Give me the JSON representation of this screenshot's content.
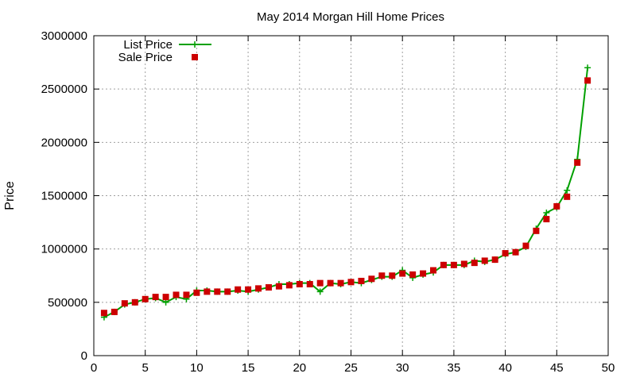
{
  "chart_data": {
    "type": "line",
    "title": "May 2014 Morgan Hill Home Prices",
    "xlabel": "",
    "ylabel": "Price",
    "xlim": [
      0,
      50
    ],
    "ylim": [
      0,
      3000000
    ],
    "x_ticks": [
      0,
      5,
      10,
      15,
      20,
      25,
      30,
      35,
      40,
      45,
      50
    ],
    "y_ticks": [
      0,
      500000,
      1000000,
      1500000,
      2000000,
      2500000,
      3000000
    ],
    "grid": true,
    "legend_position": "top-left",
    "series": [
      {
        "name": "List Price",
        "style": "line-with-plus-markers",
        "color": "#00a000",
        "x": [
          1,
          2,
          3,
          4,
          5,
          6,
          7,
          8,
          9,
          10,
          11,
          12,
          13,
          14,
          15,
          16,
          17,
          18,
          19,
          20,
          21,
          22,
          23,
          24,
          25,
          26,
          27,
          28,
          29,
          30,
          31,
          32,
          33,
          34,
          35,
          36,
          37,
          38,
          39,
          40,
          41,
          42,
          43,
          44,
          45,
          46,
          47,
          48
        ],
        "values": [
          360000,
          410000,
          480000,
          500000,
          530000,
          540000,
          500000,
          550000,
          530000,
          610000,
          610000,
          600000,
          600000,
          610000,
          600000,
          620000,
          640000,
          670000,
          670000,
          680000,
          680000,
          600000,
          680000,
          670000,
          690000,
          680000,
          710000,
          740000,
          740000,
          800000,
          730000,
          760000,
          780000,
          850000,
          850000,
          850000,
          890000,
          880000,
          900000,
          950000,
          970000,
          1020000,
          1190000,
          1340000,
          1390000,
          1550000,
          1840000,
          2700000
        ]
      },
      {
        "name": "Sale Price",
        "style": "square-markers",
        "color": "#cc0000",
        "x": [
          1,
          2,
          3,
          4,
          5,
          6,
          7,
          8,
          9,
          10,
          11,
          12,
          13,
          14,
          15,
          16,
          17,
          18,
          19,
          20,
          21,
          22,
          23,
          24,
          25,
          26,
          27,
          28,
          29,
          30,
          31,
          32,
          33,
          34,
          35,
          36,
          37,
          38,
          39,
          40,
          41,
          42,
          43,
          44,
          45,
          46,
          47,
          48
        ],
        "values": [
          400000,
          410000,
          490000,
          500000,
          530000,
          550000,
          550000,
          570000,
          570000,
          590000,
          600000,
          600000,
          600000,
          620000,
          620000,
          630000,
          640000,
          650000,
          660000,
          670000,
          670000,
          680000,
          680000,
          680000,
          690000,
          700000,
          720000,
          750000,
          750000,
          770000,
          760000,
          770000,
          800000,
          850000,
          850000,
          860000,
          870000,
          890000,
          900000,
          960000,
          970000,
          1030000,
          1170000,
          1280000,
          1400000,
          1490000,
          1810000,
          2580000
        ]
      }
    ]
  }
}
